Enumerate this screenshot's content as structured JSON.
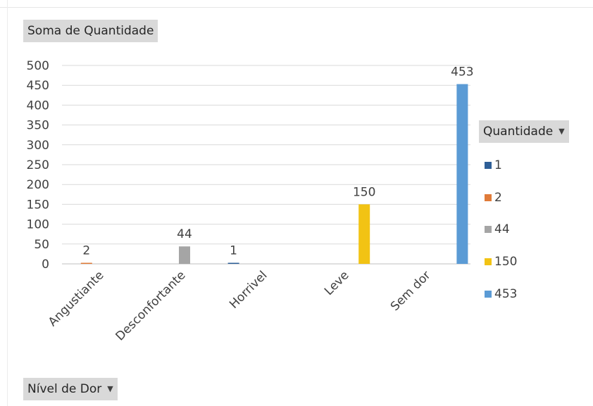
{
  "chart_data": {
    "type": "bar",
    "categories": [
      "Angustiante",
      "Desconfortante",
      "Horrivel",
      "Leve",
      "Sem dor"
    ],
    "series": [
      {
        "name": "1",
        "color": "#2e5f97",
        "values": [
          null,
          null,
          1,
          null,
          null
        ]
      },
      {
        "name": "2",
        "color": "#e07b39",
        "values": [
          2,
          null,
          null,
          null,
          null
        ]
      },
      {
        "name": "44",
        "color": "#a5a5a5",
        "values": [
          null,
          44,
          null,
          null,
          null
        ]
      },
      {
        "name": "150",
        "color": "#f2c314",
        "values": [
          null,
          null,
          null,
          150,
          null
        ]
      },
      {
        "name": "453",
        "color": "#5b9bd5",
        "values": [
          null,
          null,
          null,
          null,
          453
        ]
      }
    ],
    "ylim": [
      0,
      500
    ],
    "yticks": [
      0,
      50,
      100,
      150,
      200,
      250,
      300,
      350,
      400,
      450,
      500
    ],
    "grid": true,
    "legend_position": "right",
    "title": "",
    "xlabel": "",
    "ylabel": ""
  },
  "field_buttons": {
    "values": "Soma de Quantidade",
    "legend": "Quantidade",
    "axis": "Nível de Dor"
  }
}
